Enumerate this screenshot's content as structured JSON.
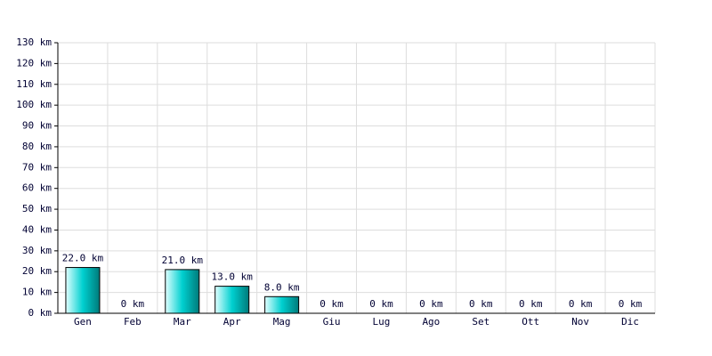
{
  "chart_data": {
    "type": "bar",
    "categories": [
      "Gen",
      "Feb",
      "Mar",
      "Apr",
      "Mag",
      "Giu",
      "Lug",
      "Ago",
      "Set",
      "Ott",
      "Nov",
      "Dic"
    ],
    "values": [
      22,
      0,
      21,
      13,
      8,
      0,
      0,
      0,
      0,
      0,
      0,
      0
    ],
    "value_labels": [
      "22.0 km",
      "0 km",
      "21.0 km",
      "13.0 km",
      "8.0 km",
      "0 km",
      "0 km",
      "0 km",
      "0 km",
      "0 km",
      "0 km",
      "0 km"
    ],
    "color": "#00d0d0",
    "ylim": [
      0,
      130
    ],
    "yticks": [
      {
        "value": 0,
        "label": "0 km"
      },
      {
        "value": 10,
        "label": "10 km"
      },
      {
        "value": 20,
        "label": "20 km"
      },
      {
        "value": 30,
        "label": "30 km"
      },
      {
        "value": 40,
        "label": "40 km"
      },
      {
        "value": 50,
        "label": "50 km"
      },
      {
        "value": 60,
        "label": "60 km"
      },
      {
        "value": 70,
        "label": "70 km"
      },
      {
        "value": 80,
        "label": "80 km"
      },
      {
        "value": 90,
        "label": "90 km"
      },
      {
        "value": 100,
        "label": "100 km"
      },
      {
        "value": 110,
        "label": "110 km"
      },
      {
        "value": 120,
        "label": "120 km"
      },
      {
        "value": 130,
        "label": "130 km"
      }
    ],
    "grid": true
  }
}
